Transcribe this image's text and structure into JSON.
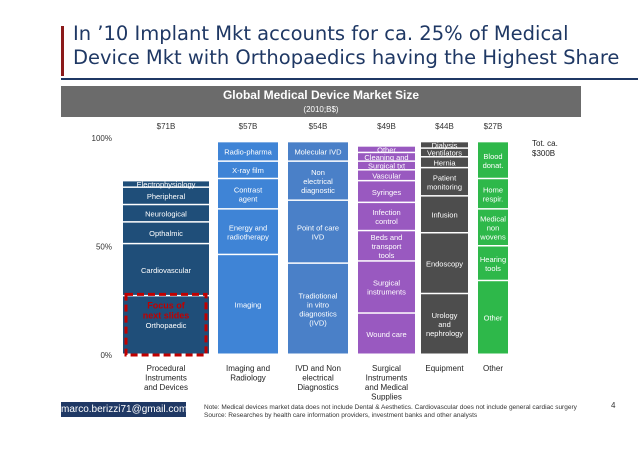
{
  "title": "In ’10 Implant Mkt accounts for ca. 25% of Medical Device Mkt with Orthopaedics having the Highest Share",
  "email": "marco.berizzi71@gmail.com",
  "note": "Note: Medical devices market data does not include Dental & Aesthetics. Cardiovascular does not include general cardiac surgery",
  "source": "Source: Researches by health care information providers, investment banks and other analysts",
  "page_number": "4",
  "chart_data": {
    "type": "bar",
    "stacked": true,
    "percent_stacked": true,
    "title": "Global Medical Device Market Size",
    "subtitle": "(2010;B$)",
    "ylim": [
      0,
      100
    ],
    "y_ticks": [
      "0%",
      "50%",
      "100%"
    ],
    "total_annotation": "Tot. ca. $300B",
    "highlight": {
      "label": "Focus of next slides",
      "column": 0,
      "color": "#c00000"
    },
    "categories": [
      "Procedural Instruments and Devices",
      "Imaging and Radiology",
      "IVD and Non electrical Diagnostics",
      "Surgical Instruments and Medical Supplies",
      "Equipment",
      "Other"
    ],
    "totals": [
      "$71B",
      "$57B",
      "$54B",
      "$49B",
      "$44B",
      "$27B"
    ],
    "columns": [
      {
        "color": "#1f4e79",
        "segments": [
          {
            "label": "Orthopaedic",
            "value": 27,
            "highlight": true
          },
          {
            "label": "Cardiovascular",
            "value": 24
          },
          {
            "label": "Opthalmic",
            "value": 10
          },
          {
            "label": "Neurological",
            "value": 8
          },
          {
            "label": "Pheripheral vascular",
            "value": 8
          },
          {
            "label": "Electrophysiology",
            "value": 3
          }
        ]
      },
      {
        "color": "#3f84d6",
        "segments": [
          {
            "label": "Imaging",
            "value": 46
          },
          {
            "label": "Energy and radiotherapy",
            "value": 21
          },
          {
            "label": "Contrast agent",
            "value": 14
          },
          {
            "label": "X-ray film",
            "value": 8
          },
          {
            "label": "Radio-pharma",
            "value": 9
          }
        ]
      },
      {
        "color": "#4a80c8",
        "segments": [
          {
            "label": "Tradiotional in vitro diagnostics (IVD)",
            "value": 42
          },
          {
            "label": "Point of care IVD",
            "value": 29
          },
          {
            "label": "Non electrical diagnostic",
            "value": 18
          },
          {
            "label": "Molecular IVD",
            "value": 9
          }
        ]
      },
      {
        "color": "#9959c0",
        "segments": [
          {
            "label": "Wound care",
            "value": 19
          },
          {
            "label": "Surgical instruments",
            "value": 24
          },
          {
            "label": "Beds and transport tools",
            "value": 14
          },
          {
            "label": "Infection control",
            "value": 13
          },
          {
            "label": "Syringes",
            "value": 10
          },
          {
            "label": "Vascular acc.",
            "value": 5
          },
          {
            "label": "Surgical txt",
            "value": 4
          },
          {
            "label": "Cleaning and anesthesia",
            "value": 4
          },
          {
            "label": "Other",
            "value": 3
          }
        ]
      },
      {
        "color": "#4d4d4d",
        "segments": [
          {
            "label": "Urology and nephrology",
            "value": 28
          },
          {
            "label": "Endoscopy",
            "value": 28
          },
          {
            "label": "Infusion",
            "value": 17
          },
          {
            "label": "Patient monitoring",
            "value": 13
          },
          {
            "label": "Hernia rep.",
            "value": 5
          },
          {
            "label": "Ventilators",
            "value": 4
          },
          {
            "label": "Dialysis",
            "value": 3
          }
        ]
      },
      {
        "color": "#2eb84a",
        "segments": [
          {
            "label": "Other",
            "value": 34
          },
          {
            "label": "Hearing tools",
            "value": 16
          },
          {
            "label": "Medical non wovens",
            "value": 17
          },
          {
            "label": "Home respir.",
            "value": 14
          },
          {
            "label": "Blood donat.",
            "value": 17
          }
        ]
      }
    ]
  }
}
